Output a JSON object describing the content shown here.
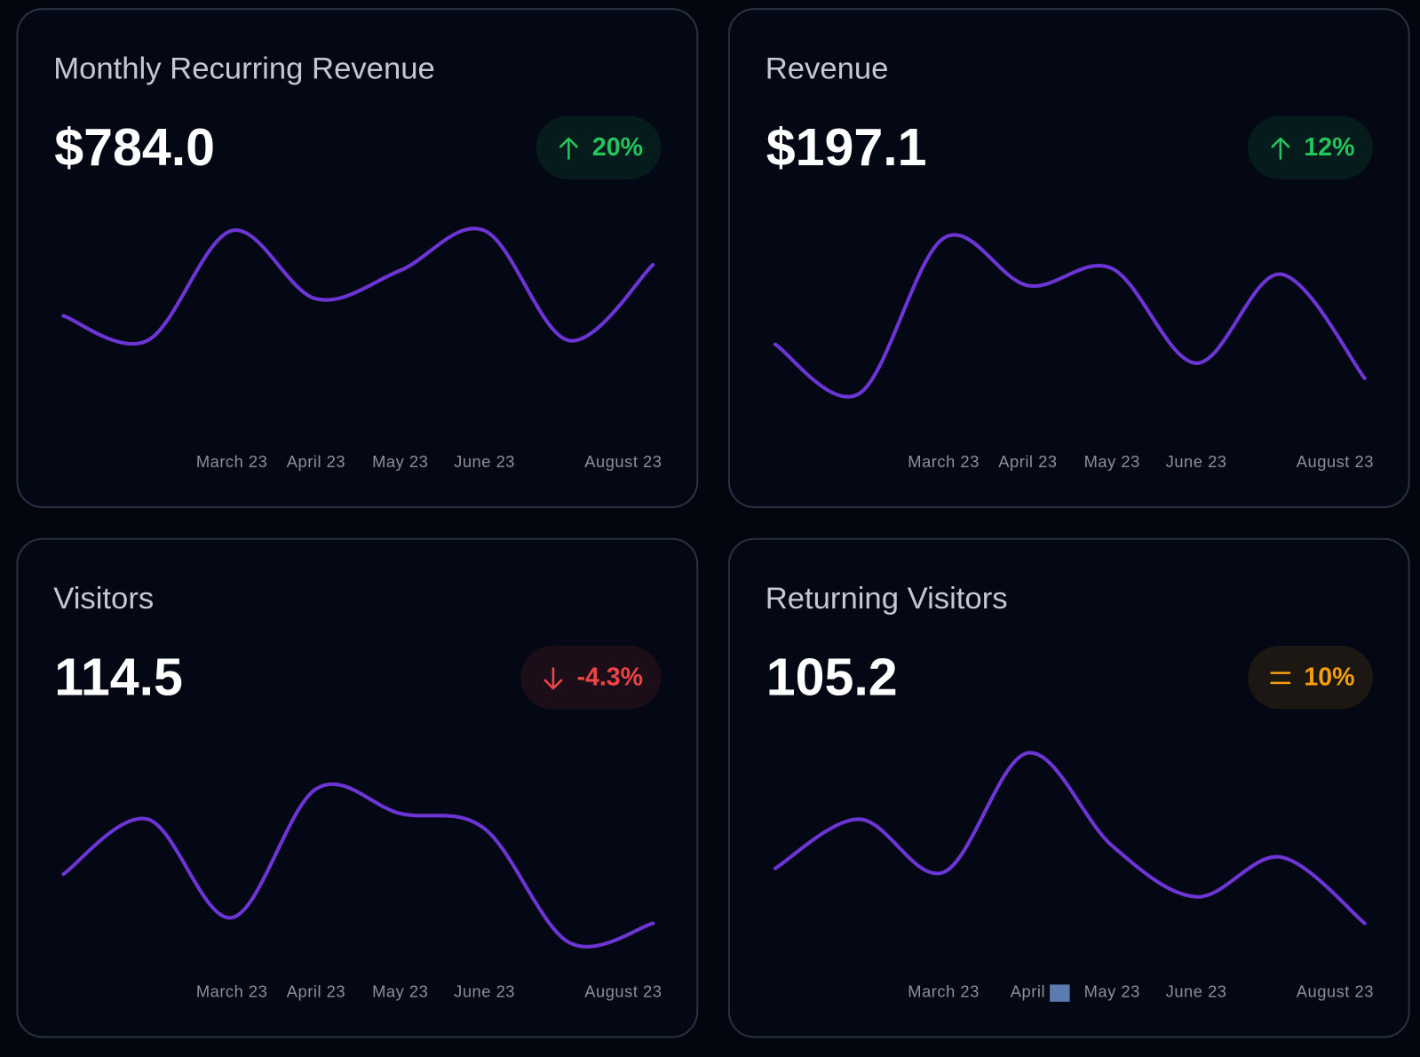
{
  "cards": [
    {
      "title": "Monthly Recurring Revenue",
      "value": "$784.0",
      "badge": {
        "text": "20%",
        "trend": "up",
        "color": "#22c55e"
      },
      "chart_data": {
        "type": "line",
        "categories": [
          null,
          null,
          "March 23",
          "April 23",
          "May 23",
          "June 23",
          null,
          "August 23"
        ],
        "values": [
          48,
          35,
          93,
          57,
          72,
          93,
          35,
          75
        ],
        "color": "#6d35d6",
        "ylim": [
          -10,
          100
        ]
      }
    },
    {
      "title": "Revenue",
      "value": "$197.1",
      "badge": {
        "text": "12%",
        "trend": "up",
        "color": "#22c55e"
      },
      "chart_data": {
        "type": "line",
        "categories": [
          null,
          null,
          "March 23",
          "April 23",
          "May 23",
          "June 23",
          null,
          "August 23"
        ],
        "values": [
          33,
          7,
          89,
          64,
          73,
          23,
          70,
          15
        ],
        "color": "#6d35d6",
        "ylim": [
          -10,
          100
        ]
      }
    },
    {
      "title": "Visitors",
      "value": "114.5",
      "badge": {
        "text": "-4.3%",
        "trend": "down",
        "color": "#ef4444"
      },
      "chart_data": {
        "type": "line",
        "categories": [
          null,
          null,
          "March 23",
          "April 23",
          "May 23",
          "June 23",
          null,
          "August 23"
        ],
        "values": [
          33,
          62,
          10,
          78,
          65,
          57,
          -3,
          7
        ],
        "color": "#6d35d6",
        "ylim": [
          -10,
          100
        ]
      }
    },
    {
      "title": "Returning Visitors",
      "value": "105.2",
      "badge": {
        "text": "10%",
        "trend": "flat",
        "color": "#f59e0b"
      },
      "chart_data": {
        "type": "line",
        "categories": [
          null,
          null,
          "March 23",
          "April",
          "May 23",
          "June 23",
          null,
          "August 23"
        ],
        "values": [
          36,
          62,
          34,
          97,
          48,
          21,
          42,
          7
        ],
        "color": "#6d35d6",
        "ylim": [
          -10,
          100
        ]
      }
    }
  ]
}
